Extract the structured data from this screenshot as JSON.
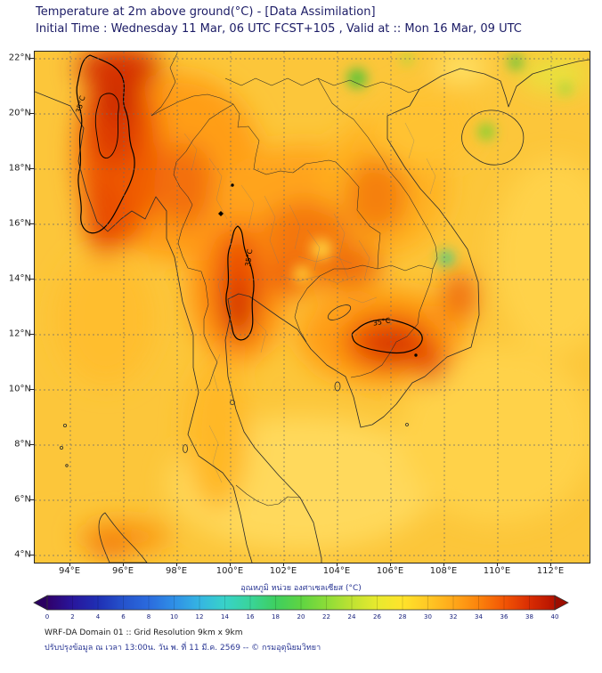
{
  "header": {
    "title": "Temperature at 2m above ground(°C) - [Data Assimilation]",
    "subtitle": "Initial Time : Wednesday 11 Mar, 06 UTC FCST+105 , Valid at :: Mon 16 Mar, 09 UTC"
  },
  "map": {
    "y_ticks": [
      "22°N",
      "20°N",
      "18°N",
      "16°N",
      "14°N",
      "12°N",
      "10°N",
      "8°N",
      "6°N",
      "4°N"
    ],
    "x_ticks": [
      "94°E",
      "96°E",
      "98°E",
      "100°E",
      "102°E",
      "104°E",
      "106°E",
      "108°E",
      "110°E",
      "112°E"
    ],
    "contour_labels": [
      "35°C",
      "35°C",
      "35°C"
    ]
  },
  "colorbar": {
    "label": "อุณหภูมิ หน่วย องศาเซลเซียส (°C)",
    "ticks": [
      0,
      2,
      4,
      6,
      8,
      10,
      12,
      14,
      16,
      18,
      20,
      22,
      24,
      26,
      28,
      30,
      32,
      34,
      36,
      38,
      40
    ],
    "gradient": [
      {
        "o": 0,
        "c": "#30006a"
      },
      {
        "o": 5,
        "c": "#28169c"
      },
      {
        "o": 10,
        "c": "#1f2fb4"
      },
      {
        "o": 15,
        "c": "#2553cc"
      },
      {
        "o": 20,
        "c": "#2b6bde"
      },
      {
        "o": 25,
        "c": "#2f8fe6"
      },
      {
        "o": 30,
        "c": "#35b5e2"
      },
      {
        "o": 35,
        "c": "#38d2c8"
      },
      {
        "o": 40,
        "c": "#39d49a"
      },
      {
        "o": 45,
        "c": "#3ecf5f"
      },
      {
        "o": 50,
        "c": "#5ed442"
      },
      {
        "o": 55,
        "c": "#8cdc38"
      },
      {
        "o": 60,
        "c": "#bfe232"
      },
      {
        "o": 65,
        "c": "#e8ea2e"
      },
      {
        "o": 70,
        "c": "#ffe32b"
      },
      {
        "o": 75,
        "c": "#ffc825"
      },
      {
        "o": 80,
        "c": "#ffa81a"
      },
      {
        "o": 85,
        "c": "#fb830c"
      },
      {
        "o": 90,
        "c": "#f25505"
      },
      {
        "o": 95,
        "c": "#d92d03"
      },
      {
        "o": 100,
        "c": "#b51200"
      }
    ],
    "arrow_left_color": "#2a0060",
    "arrow_right_color": "#9c0d00"
  },
  "footer": {
    "line1": "WRF-DA Domain 01 :: Grid Resolution 9km x 9km",
    "line2": "ปรับปรุงข้อมูล ณ เวลา 13:00น. วัน พ. ที่ 11 มี.ค. 2569 -- © กรมอุตุนิยมวิทยา"
  },
  "chart_data": {
    "type": "heatmap",
    "title": "Temperature at 2m above ground(°C) - [Data Assimilation]",
    "subtitle": "Initial Time : Wednesday 11 Mar, 06 UTC FCST+105 , Valid at :: Mon 16 Mar, 09 UTC",
    "variable": "air temperature at 2 m above ground",
    "units": "°C",
    "x_axis": {
      "ticks": [
        "94°E",
        "96°E",
        "98°E",
        "100°E",
        "102°E",
        "104°E",
        "106°E",
        "108°E",
        "110°E",
        "112°E"
      ],
      "approx_range_deg_e": [
        92.7,
        113.4
      ]
    },
    "y_axis": {
      "ticks": [
        "4°N",
        "6°N",
        "8°N",
        "10°N",
        "12°N",
        "14°N",
        "16°N",
        "18°N",
        "20°N",
        "22°N"
      ],
      "approx_range_deg_n": [
        3.7,
        22.3
      ]
    },
    "grid": "dashed graticule every 2 degrees",
    "legend_position": "bottom horizontal colorbar with arrow ends",
    "colorbar": {
      "label": "อุณหภูมิ หน่วย องศาเซลเซียส (°C)",
      "min": 0,
      "max": 40,
      "tick_step": 2
    },
    "contours": [
      {
        "level_c": 35,
        "label": "35°C",
        "region": "western Myanmar hot zone",
        "approx_center": {
          "lon_e": 95.5,
          "lat_n": 18.5
        }
      },
      {
        "level_c": 35,
        "label": "35°C",
        "region": "central Thailand hot strip",
        "approx_center": {
          "lon_e": 100.3,
          "lat_n": 14.5
        }
      },
      {
        "level_c": 35,
        "label": "35°C",
        "region": "Cambodia hot zone",
        "approx_center": {
          "lon_e": 105.3,
          "lat_n": 12.2
        }
      }
    ],
    "field_estimates_c": [
      {
        "region": "western Myanmar hot core",
        "value": 37
      },
      {
        "region": "central Thailand hot strip",
        "value": 36
      },
      {
        "region": "Cambodia hot zone",
        "value": 36
      },
      {
        "region": "northeast Thailand / Laos lowlands",
        "value": 33
      },
      {
        "region": "general land (yellow-orange)",
        "value": 32
      },
      {
        "region": "sea surfaces (Gulf of Thailand, Andaman Sea, South China Sea)",
        "value": 30
      },
      {
        "region": "cool green spots (northern highlands / Annamite range)",
        "value": 24
      }
    ]
  }
}
